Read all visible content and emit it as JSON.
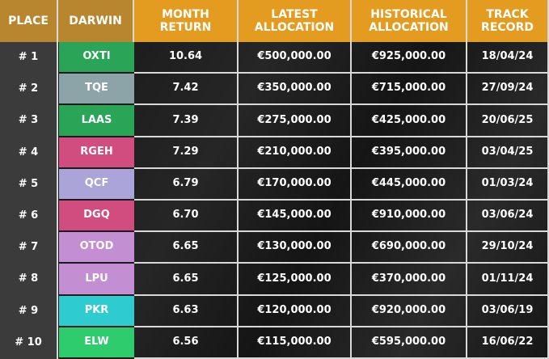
{
  "table": {
    "columns": [
      "PLACE",
      "DARWIN",
      "MONTH RETURN",
      "LATEST ALLOCATION",
      "HISTORICAL ALLOCATION",
      "TRACK RECORD"
    ],
    "rows": [
      [
        "# 1",
        "OXTI",
        "10.64",
        "€500,000.00",
        "€925,000.00",
        "18/04/24"
      ],
      [
        "# 2",
        "TQE",
        "7.42",
        "€350,000.00",
        "€715,000.00",
        "27/09/24"
      ],
      [
        "# 3",
        "LAAS",
        "7.39",
        "€275,000.00",
        "€425,000.00",
        "20/06/25"
      ],
      [
        "# 4",
        "RGEH",
        "7.29",
        "€210,000.00",
        "€395,000.00",
        "03/04/25"
      ],
      [
        "# 5",
        "QCF",
        "6.79",
        "€170,000.00",
        "€445,000.00",
        "01/03/24"
      ],
      [
        "# 6",
        "DGQ",
        "6.70",
        "€145,000.00",
        "€910,000.00",
        "03/06/24"
      ],
      [
        "# 7",
        "OTOD",
        "6.65",
        "€130,000.00",
        "€690,000.00",
        "29/10/24"
      ],
      [
        "# 8",
        "LPU",
        "6.65",
        "€125,000.00",
        "€370,000.00",
        "01/11/24"
      ],
      [
        "# 9",
        "PKR",
        "6.63",
        "€120,000.00",
        "€920,000.00",
        "03/06/19"
      ],
      [
        "# 10",
        "ELW",
        "6.56",
        "€115,000.00",
        "€595,000.00",
        "16/06/22"
      ]
    ],
    "darwin_colors": [
      "#2aa457",
      "#8ca3a8",
      "#2aa457",
      "#d14d7f",
      "#aaa4d8",
      "#d14d7f",
      "#c48ed2",
      "#c48ed2",
      "#2ecbd0",
      "#2ecc6c"
    ]
  }
}
